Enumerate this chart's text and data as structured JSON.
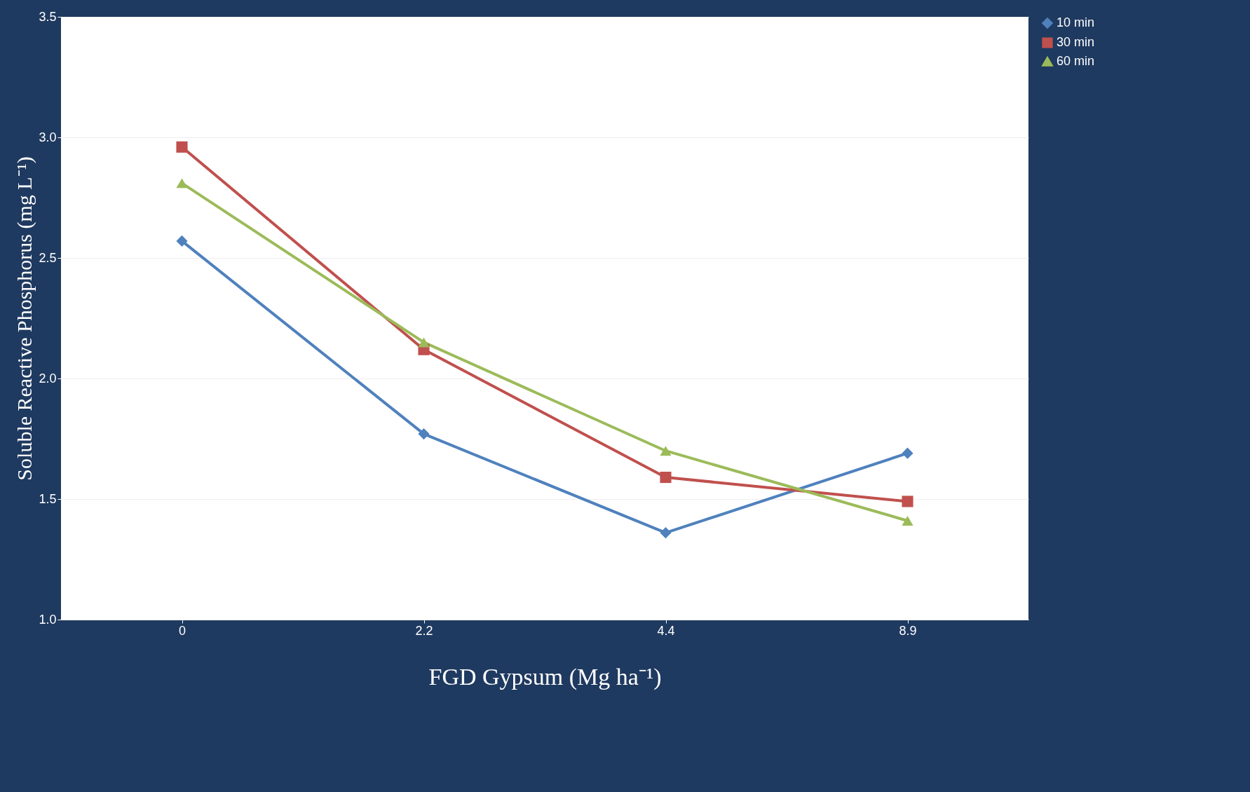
{
  "chart_data": {
    "type": "line",
    "xlabel": "FGD Gypsum (Mg ha⁻¹)",
    "ylabel": "Soluble Reactive Phosphorus (mg L⁻¹)",
    "categories": [
      "0",
      "2.2",
      "4.4",
      "8.9"
    ],
    "series": [
      {
        "name": "10 min",
        "color": "#4f81bd",
        "marker": "diamond",
        "values": [
          2.57,
          1.77,
          1.36,
          1.69
        ]
      },
      {
        "name": "30 min",
        "color": "#c0504d",
        "marker": "square",
        "values": [
          2.96,
          2.12,
          1.59,
          1.49
        ]
      },
      {
        "name": "60 min",
        "color": "#9bbb59",
        "marker": "triangle",
        "values": [
          2.81,
          2.15,
          1.7,
          1.41
        ]
      }
    ],
    "ylim": [
      1.0,
      3.5
    ],
    "yticks": [
      {
        "value": 1,
        "label": "1.0"
      },
      1.5,
      {
        "value": 2,
        "label": "2.0"
      },
      2.5,
      {
        "value": 3,
        "label": "3.0"
      },
      3.5
    ],
    "grid": "y",
    "legend": "right",
    "line_style": "solid"
  }
}
